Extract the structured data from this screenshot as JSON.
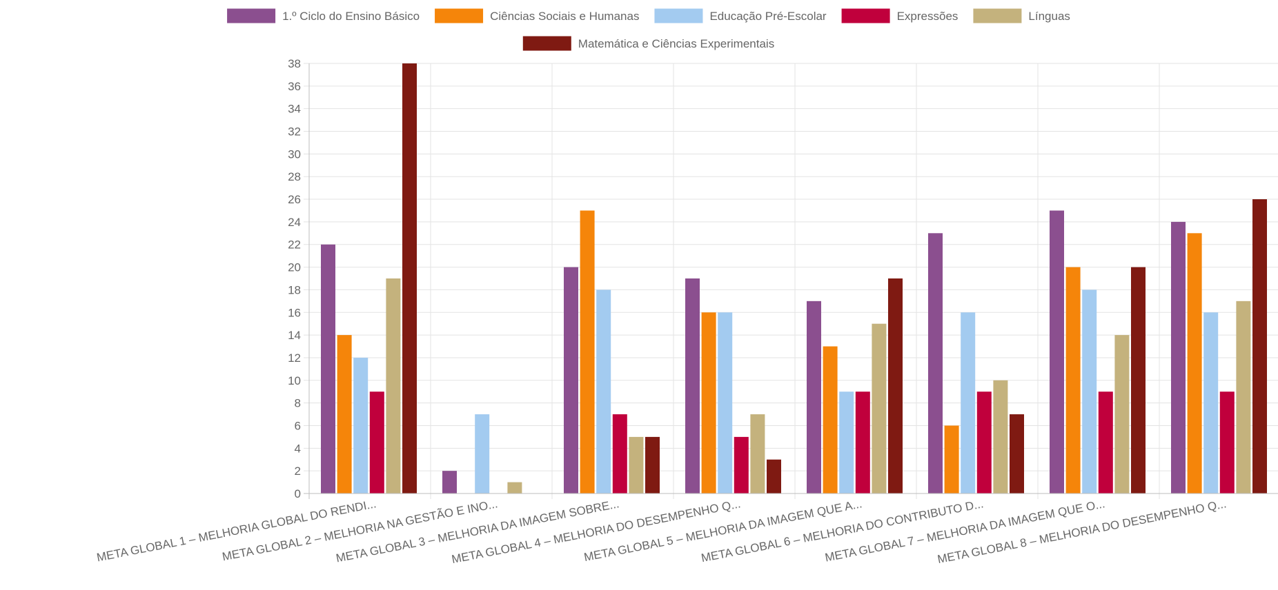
{
  "chart_data": {
    "type": "bar",
    "categories": [
      "META GLOBAL 1 – MELHORIA GLOBAL DO RENDI...",
      "META GLOBAL 2 – MELHORIA NA GESTÃO E INO...",
      "META GLOBAL 3 – MELHORIA DA IMAGEM SOBRE...",
      "META GLOBAL 4 – MELHORIA DO DESEMPENHO Q...",
      "META GLOBAL 5 – MELHORIA DA IMAGEM QUE A...",
      "META GLOBAL 6 – MELHORIA DO CONTRIBUTO D...",
      "META GLOBAL 7 – MELHORIA DA IMAGEM QUE O...",
      "META GLOBAL 8 – MELHORIA DO DESEMPENHO Q..."
    ],
    "series": [
      {
        "name": "1.º Ciclo do Ensino Básico",
        "color": "#8b4f8f",
        "values": [
          22,
          2,
          20,
          19,
          17,
          23,
          25,
          24
        ]
      },
      {
        "name": "Ciências Sociais e Humanas",
        "color": "#f5850a",
        "values": [
          14,
          0,
          25,
          16,
          13,
          6,
          20,
          23
        ]
      },
      {
        "name": "Educação Pré-Escolar",
        "color": "#a3cbf0",
        "values": [
          12,
          7,
          18,
          16,
          9,
          16,
          18,
          16
        ]
      },
      {
        "name": "Expressões",
        "color": "#c0003c",
        "values": [
          9,
          0,
          7,
          5,
          9,
          9,
          9,
          9
        ]
      },
      {
        "name": "Línguas",
        "color": "#c4b27d",
        "values": [
          19,
          1,
          5,
          7,
          15,
          10,
          14,
          17
        ]
      },
      {
        "name": "Matemática e Ciências Experimentais",
        "color": "#7f1a12",
        "values": [
          38,
          0,
          5,
          3,
          19,
          7,
          20,
          26
        ]
      }
    ],
    "ylim": [
      0,
      38
    ],
    "ystep": 2,
    "grid": true,
    "legend_position": "top"
  }
}
